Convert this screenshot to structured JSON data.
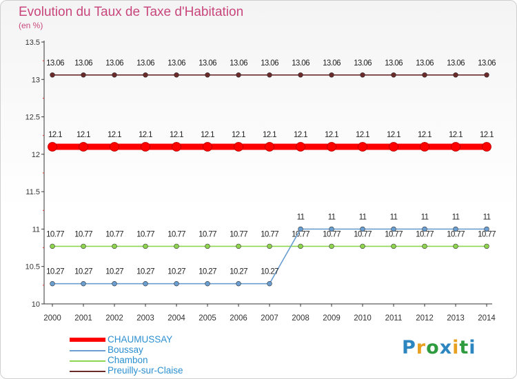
{
  "title": "Evolution du Taux de Taxe d'Habitation",
  "subtitle": "(en %)",
  "logo_text": "Proxiti",
  "chart_data": {
    "type": "line",
    "title": "Evolution du Taux de Taxe d'Habitation",
    "ylabel": "(en %)",
    "xlabel": "",
    "x": [
      "2000",
      "2001",
      "2002",
      "2003",
      "2004",
      "2005",
      "2006",
      "2007",
      "2008",
      "2009",
      "2010",
      "2011",
      "2012",
      "2013",
      "2014"
    ],
    "ylim": [
      10,
      13.5
    ],
    "yticks": [
      10,
      10.5,
      11,
      11.5,
      12,
      12.5,
      13,
      13.5
    ],
    "ytick_labels": [
      "10",
      "10.5",
      "11",
      "11.5",
      "12",
      "12.5",
      "13",
      "13.5"
    ],
    "legend_position": "bottom-left",
    "series": [
      {
        "name": "CHAUMUSSAY",
        "color": "#ff0000",
        "emphasis": "bold",
        "values": [
          12.1,
          12.1,
          12.1,
          12.1,
          12.1,
          12.1,
          12.1,
          12.1,
          12.1,
          12.1,
          12.1,
          12.1,
          12.1,
          12.1,
          12.1
        ],
        "labels": [
          "12.1",
          "12.1",
          "12.1",
          "12.1",
          "12.1",
          "12.1",
          "12.1",
          "12.1",
          "12.1",
          "12.1",
          "12.1",
          "12.1",
          "12.1",
          "12.1",
          "12.1"
        ]
      },
      {
        "name": "Boussay",
        "color": "#6a9ed0",
        "emphasis": "normal",
        "values": [
          10.27,
          10.27,
          10.27,
          10.27,
          10.27,
          10.27,
          10.27,
          10.27,
          11,
          11,
          11,
          11,
          11,
          11,
          11
        ],
        "labels": [
          "10.27",
          "10.27",
          "10.27",
          "10.27",
          "10.27",
          "10.27",
          "10.27",
          "10.27",
          "11",
          "11",
          "11",
          "11",
          "11",
          "11",
          "11"
        ]
      },
      {
        "name": "Chambon",
        "color": "#8fd44f",
        "emphasis": "normal",
        "values": [
          10.77,
          10.77,
          10.77,
          10.77,
          10.77,
          10.77,
          10.77,
          10.77,
          10.77,
          10.77,
          10.77,
          10.77,
          10.77,
          10.77,
          10.77
        ],
        "labels": [
          "10.77",
          "10.77",
          "10.77",
          "10.77",
          "10.77",
          "10.77",
          "10.77",
          "10.77",
          "10.77",
          "10.77",
          "10.77",
          "10.77",
          "10.77",
          "10.77",
          "10.77"
        ]
      },
      {
        "name": "Preuilly-sur-Claise",
        "color": "#6b2a2a",
        "emphasis": "normal",
        "values": [
          13.06,
          13.06,
          13.06,
          13.06,
          13.06,
          13.06,
          13.06,
          13.06,
          13.06,
          13.06,
          13.06,
          13.06,
          13.06,
          13.06,
          13.06
        ],
        "labels": [
          "13.06",
          "13.06",
          "13.06",
          "13.06",
          "13.06",
          "13.06",
          "13.06",
          "13.06",
          "13.06",
          "13.06",
          "13.06",
          "13.06",
          "13.06",
          "13.06",
          "13.06"
        ]
      }
    ]
  }
}
